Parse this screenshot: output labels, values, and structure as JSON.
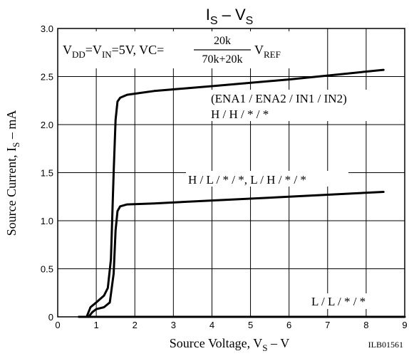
{
  "chart_data": {
    "type": "line",
    "title": {
      "main": "I",
      "sub": "S",
      "sep": " – ",
      "main2": "V",
      "sub2": "S"
    },
    "xlabel": {
      "pre": "Source Voltage, V",
      "sub": "S",
      "post": " – V"
    },
    "ylabel": {
      "pre": "Source Current, I",
      "sub": "S",
      "post": " – mA"
    },
    "xlim": [
      0,
      9
    ],
    "ylim": [
      0,
      3.0
    ],
    "xticks": [
      "0",
      "1",
      "2",
      "3",
      "4",
      "5",
      "6",
      "7",
      "8",
      "9"
    ],
    "yticks": [
      "0",
      "0.5",
      "1.0",
      "1.5",
      "2.0",
      "2.5",
      "3.0"
    ],
    "grid": true,
    "figure_code": "ILB01561",
    "condition": {
      "vdd": "V",
      "vdd_sub": "DD",
      "eq1": "=V",
      "vin_sub": "IN",
      "mid": "=5V, VC=",
      "num": "20k",
      "den": "70k+20k",
      "vref": "V",
      "vref_sub": "REF"
    },
    "annotations": {
      "legend_header": "(ENA1 / ENA2 / IN1 / IN2)",
      "hh": "H / H / * / *",
      "hl": "H / L / * / *, L / H / * / *",
      "ll": "L / L / * / *"
    },
    "series": [
      {
        "x": [
          0.55,
          0.75,
          0.85,
          1.0,
          1.2,
          1.3,
          1.38,
          1.45,
          1.5,
          1.55,
          1.62,
          1.8,
          2.5,
          4,
          6,
          8.45
        ],
        "y": [
          0.0,
          0.0,
          0.1,
          0.15,
          0.22,
          0.3,
          0.6,
          1.5,
          2.05,
          2.24,
          2.28,
          2.31,
          2.35,
          2.4,
          2.47,
          2.57
        ]
      },
      {
        "x": [
          0.55,
          0.8,
          0.9,
          1.0,
          1.2,
          1.35,
          1.45,
          1.5,
          1.55,
          1.62,
          1.8,
          2.5,
          4,
          6,
          8.45
        ],
        "y": [
          0.0,
          0.0,
          0.05,
          0.08,
          0.1,
          0.15,
          0.45,
          0.9,
          1.1,
          1.15,
          1.17,
          1.18,
          1.21,
          1.25,
          1.3
        ]
      },
      {
        "x": [
          0.55,
          9
        ],
        "y": [
          0.0,
          0.0
        ]
      }
    ]
  }
}
